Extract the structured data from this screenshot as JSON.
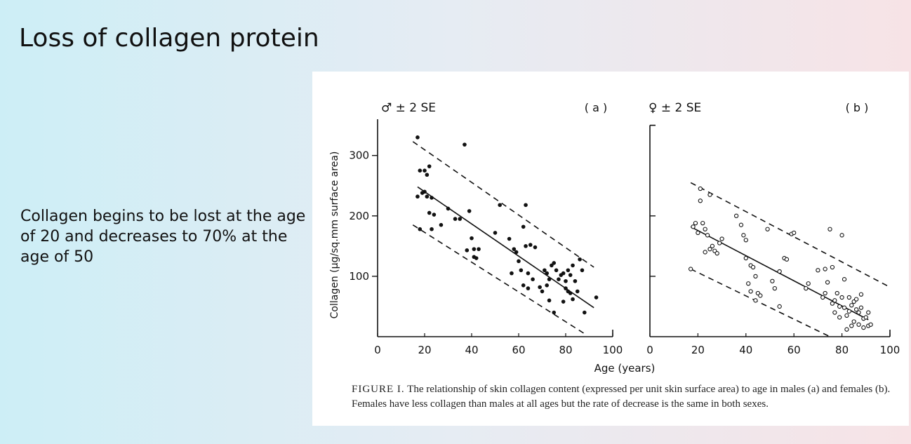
{
  "slide": {
    "title": "Loss of collagen protein",
    "body": "Collagen begins to be lost at the age of 20 and decreases to 70% at the age of 50"
  },
  "figure": {
    "caption_label": "FIGURE I.",
    "caption_text": "The relationship of skin collagen content (expressed per unit skin surface area) to age in males (a) and females (b). Females have less collagen than males at all ages but the rate of decrease is the same in both sexes."
  },
  "chart_data": [
    {
      "type": "scatter",
      "panel_label": "( a )",
      "legend": "♂ ± 2 SE",
      "ylabel": "Collagen (µg/sq.mm surface area)",
      "xlabel": "Age (years)",
      "xlim": [
        0,
        100
      ],
      "ylim": [
        0,
        360
      ],
      "x_ticks": [
        "0",
        "20",
        "40",
        "60",
        "80",
        "100"
      ],
      "y_ticks": [
        "100",
        "200",
        "300"
      ],
      "regression": {
        "x": [
          17,
          92
        ],
        "y": [
          248,
          48
        ]
      },
      "upper_band": {
        "x": [
          15,
          92
        ],
        "y": [
          323,
          115
        ]
      },
      "lower_band": {
        "x": [
          15,
          88
        ],
        "y": [
          185,
          5
        ]
      },
      "points": [
        [
          17,
          330
        ],
        [
          18,
          275
        ],
        [
          20,
          275
        ],
        [
          21,
          268
        ],
        [
          22,
          282
        ],
        [
          19,
          238
        ],
        [
          20,
          240
        ],
        [
          21,
          232
        ],
        [
          23,
          230
        ],
        [
          17,
          232
        ],
        [
          22,
          205
        ],
        [
          24,
          202
        ],
        [
          18,
          178
        ],
        [
          23,
          178
        ],
        [
          27,
          185
        ],
        [
          30,
          212
        ],
        [
          33,
          195
        ],
        [
          35,
          195
        ],
        [
          37,
          318
        ],
        [
          39,
          208
        ],
        [
          40,
          163
        ],
        [
          38,
          143
        ],
        [
          41,
          145
        ],
        [
          43,
          145
        ],
        [
          41,
          132
        ],
        [
          42,
          130
        ],
        [
          50,
          172
        ],
        [
          52,
          218
        ],
        [
          56,
          162
        ],
        [
          58,
          145
        ],
        [
          59,
          140
        ],
        [
          60,
          125
        ],
        [
          62,
          182
        ],
        [
          63,
          150
        ],
        [
          65,
          152
        ],
        [
          67,
          148
        ],
        [
          61,
          110
        ],
        [
          64,
          105
        ],
        [
          66,
          95
        ],
        [
          62,
          85
        ],
        [
          64,
          80
        ],
        [
          69,
          82
        ],
        [
          71,
          110
        ],
        [
          72,
          105
        ],
        [
          73,
          95
        ],
        [
          74,
          118
        ],
        [
          75,
          122
        ],
        [
          76,
          110
        ],
        [
          70,
          75
        ],
        [
          72,
          85
        ],
        [
          73,
          60
        ],
        [
          75,
          40
        ],
        [
          77,
          95
        ],
        [
          78,
          102
        ],
        [
          79,
          105
        ],
        [
          80,
          92
        ],
        [
          81,
          110
        ],
        [
          82,
          102
        ],
        [
          83,
          118
        ],
        [
          84,
          92
        ],
        [
          79,
          58
        ],
        [
          80,
          80
        ],
        [
          81,
          75
        ],
        [
          82,
          72
        ],
        [
          83,
          62
        ],
        [
          85,
          75
        ],
        [
          86,
          128
        ],
        [
          87,
          110
        ],
        [
          88,
          40
        ],
        [
          93,
          65
        ],
        [
          63,
          218
        ],
        [
          57,
          105
        ]
      ]
    },
    {
      "type": "scatter",
      "panel_label": "( b )",
      "legend": "♀ ± 2 SE",
      "xlim": [
        0,
        100
      ],
      "ylim": [
        0,
        360
      ],
      "x_ticks": [
        "0",
        "20",
        "40",
        "60",
        "80",
        "100"
      ],
      "regression": {
        "x": [
          17,
          91
        ],
        "y": [
          182,
          28
        ]
      },
      "upper_band": {
        "x": [
          17,
          100
        ],
        "y": [
          255,
          82
        ]
      },
      "lower_band": {
        "x": [
          17,
          75
        ],
        "y": [
          112,
          0
        ]
      },
      "points": [
        [
          17,
          112
        ],
        [
          18,
          182
        ],
        [
          19,
          188
        ],
        [
          20,
          172
        ],
        [
          21,
          225
        ],
        [
          22,
          188
        ],
        [
          23,
          178
        ],
        [
          24,
          168
        ],
        [
          21,
          245
        ],
        [
          23,
          140
        ],
        [
          25,
          145
        ],
        [
          26,
          150
        ],
        [
          27,
          142
        ],
        [
          28,
          138
        ],
        [
          29,
          155
        ],
        [
          30,
          162
        ],
        [
          25,
          235
        ],
        [
          36,
          200
        ],
        [
          38,
          185
        ],
        [
          39,
          168
        ],
        [
          40,
          160
        ],
        [
          40,
          130
        ],
        [
          42,
          118
        ],
        [
          43,
          115
        ],
        [
          44,
          100
        ],
        [
          41,
          88
        ],
        [
          42,
          75
        ],
        [
          45,
          72
        ],
        [
          46,
          68
        ],
        [
          44,
          60
        ],
        [
          49,
          178
        ],
        [
          51,
          92
        ],
        [
          52,
          80
        ],
        [
          54,
          108
        ],
        [
          56,
          130
        ],
        [
          57,
          128
        ],
        [
          54,
          50
        ],
        [
          59,
          170
        ],
        [
          60,
          172
        ],
        [
          65,
          80
        ],
        [
          66,
          88
        ],
        [
          70,
          110
        ],
        [
          72,
          65
        ],
        [
          73,
          72
        ],
        [
          74,
          90
        ],
        [
          75,
          178
        ],
        [
          76,
          55
        ],
        [
          77,
          40
        ],
        [
          78,
          72
        ],
        [
          79,
          50
        ],
        [
          80,
          65
        ],
        [
          81,
          48
        ],
        [
          82,
          35
        ],
        [
          83,
          42
        ],
        [
          84,
          52
        ],
        [
          85,
          58
        ],
        [
          86,
          45
        ],
        [
          87,
          40
        ],
        [
          88,
          48
        ],
        [
          89,
          30
        ],
        [
          90,
          32
        ],
        [
          91,
          40
        ],
        [
          80,
          168
        ],
        [
          85,
          25
        ],
        [
          87,
          20
        ],
        [
          89,
          15
        ],
        [
          82,
          12
        ],
        [
          84,
          18
        ],
        [
          91,
          18
        ],
        [
          92,
          20
        ],
        [
          88,
          70
        ],
        [
          86,
          62
        ],
        [
          77,
          60
        ],
        [
          79,
          32
        ],
        [
          73,
          112
        ],
        [
          76,
          115
        ],
        [
          81,
          95
        ],
        [
          83,
          65
        ]
      ]
    }
  ]
}
